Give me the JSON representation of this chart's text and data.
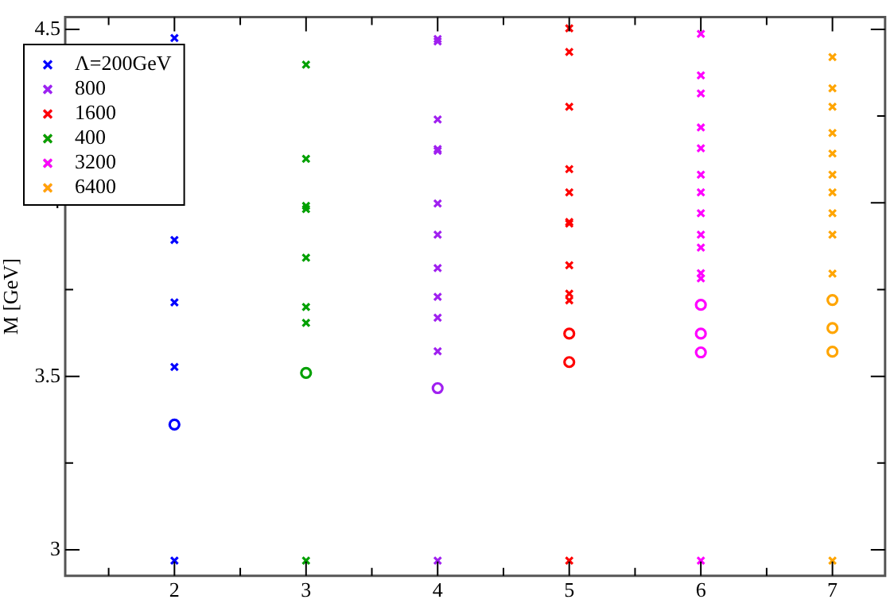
{
  "chart_data": {
    "type": "scatter",
    "ylabel": "M [GeV]",
    "xlim": [
      1.17,
      7.4
    ],
    "ylim": [
      2.925,
      4.535
    ],
    "xticks": [
      {
        "value": 1.5,
        "label": null
      },
      2,
      {
        "value": 2.5,
        "label": null
      },
      3,
      {
        "value": 3.5,
        "label": null
      },
      4,
      {
        "value": 4.5,
        "label": null
      },
      5,
      {
        "value": 5.5,
        "label": null
      },
      6,
      {
        "value": 6.5,
        "label": null
      },
      7
    ],
    "yticks": [
      3,
      {
        "value": 3.25,
        "label": null
      },
      3.5,
      {
        "value": 3.75,
        "label": null
      },
      4,
      {
        "value": 4.25,
        "label": null
      },
      4.5
    ],
    "grid": false,
    "legend": "top left",
    "series": [
      {
        "name": "Λ=200GeV",
        "color": "#0000ff",
        "marker": "cross",
        "x": [
          2,
          2,
          2,
          2,
          2
        ],
        "values": [
          4.475,
          3.893,
          3.713,
          3.527,
          2.969
        ]
      },
      {
        "name": "800",
        "color": "#a020f0",
        "marker": "cross",
        "x": [
          4,
          4,
          4,
          4,
          4,
          4,
          4,
          4,
          4,
          4,
          4,
          4
        ],
        "values": [
          4.472,
          4.465,
          4.24,
          4.155,
          4.15,
          3.998,
          3.908,
          3.812,
          3.729,
          3.669,
          3.572,
          2.969
        ]
      },
      {
        "name": "1600",
        "color": "#ff0000",
        "marker": "cross",
        "x": [
          5,
          5,
          5,
          5,
          5,
          5,
          5,
          5,
          5,
          5,
          5
        ],
        "values": [
          4.503,
          4.435,
          4.277,
          4.097,
          4.03,
          3.945,
          3.94,
          3.82,
          3.738,
          3.719,
          2.969
        ]
      },
      {
        "name": "400",
        "color": "#00a000",
        "marker": "cross",
        "x": [
          3,
          3,
          3,
          3,
          3,
          3,
          3,
          3
        ],
        "values": [
          4.398,
          4.127,
          3.991,
          3.982,
          3.842,
          3.7,
          3.654,
          2.969
        ]
      },
      {
        "name": "3200",
        "color": "#ff00ff",
        "marker": "cross",
        "x": [
          6,
          6,
          6,
          6,
          6,
          6,
          6,
          6,
          6,
          6,
          6,
          6,
          6
        ],
        "values": [
          4.487,
          4.367,
          4.315,
          4.217,
          4.157,
          4.081,
          4.03,
          3.97,
          3.908,
          3.871,
          3.797,
          3.782,
          2.969
        ]
      },
      {
        "name": "6400",
        "color": "#ffa500",
        "marker": "cross",
        "x": [
          7,
          7,
          7,
          7,
          7,
          7,
          7,
          7,
          7,
          7,
          7
        ],
        "values": [
          4.42,
          4.33,
          4.277,
          4.201,
          4.142,
          4.081,
          4.03,
          3.97,
          3.908,
          3.796,
          2.969
        ]
      },
      {
        "color": "#0000ff",
        "marker": "circle",
        "x": [
          2
        ],
        "values": [
          3.361
        ]
      },
      {
        "color": "#a020f0",
        "marker": "circle",
        "x": [
          4
        ],
        "values": [
          3.466
        ]
      },
      {
        "color": "#ff0000",
        "marker": "circle",
        "x": [
          5,
          5
        ],
        "values": [
          3.623,
          3.541
        ]
      },
      {
        "color": "#00a000",
        "marker": "circle",
        "x": [
          3
        ],
        "values": [
          3.51
        ]
      },
      {
        "color": "#ff00ff",
        "marker": "circle",
        "x": [
          6,
          6,
          6
        ],
        "values": [
          3.706,
          3.623,
          3.569
        ]
      },
      {
        "color": "#ffa500",
        "marker": "circle",
        "x": [
          7,
          7,
          7
        ],
        "values": [
          3.72,
          3.639,
          3.571
        ]
      }
    ]
  }
}
